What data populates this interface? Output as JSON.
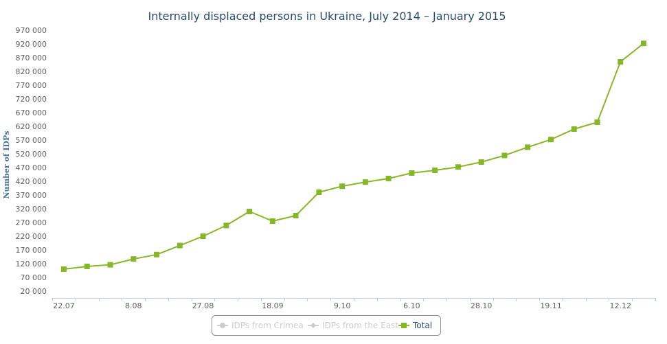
{
  "chart_data": {
    "type": "line",
    "title": "Internally displaced persons in Ukraine, July 2014 – January 2015",
    "xlabel": "",
    "ylabel": "Number of IDPs",
    "ylim": [
      20000,
      970000
    ],
    "y_ticks": [
      "20 000",
      "70 000",
      "120 000",
      "170 000",
      "220 000",
      "270 000",
      "320 000",
      "370 000",
      "420 000",
      "470 000",
      "520 000",
      "570 000",
      "620 000",
      "670 000",
      "720 000",
      "770 000",
      "820 000",
      "870 000",
      "920 000",
      "970 000"
    ],
    "x_tick_labels": [
      {
        "index": 0,
        "label": "22.07"
      },
      {
        "index": 3,
        "label": "8.08"
      },
      {
        "index": 6,
        "label": "27.08"
      },
      {
        "index": 9,
        "label": "18.09"
      },
      {
        "index": 12,
        "label": "9.10"
      },
      {
        "index": 15,
        "label": "6.10"
      },
      {
        "index": 18,
        "label": "28.10"
      },
      {
        "index": 21,
        "label": "19.11"
      },
      {
        "index": 24,
        "label": "12.12"
      }
    ],
    "grid": false,
    "legend_position": "bottom-center",
    "series": [
      {
        "name": "IDPs from Crimea",
        "visible": false,
        "color": "#cccccc",
        "values": []
      },
      {
        "name": "IDPs from the East",
        "visible": false,
        "color": "#cccccc",
        "values": []
      },
      {
        "name": "Total",
        "visible": true,
        "color": "#86b728",
        "values": [
          100000,
          110000,
          116000,
          137000,
          153000,
          186000,
          220000,
          259000,
          310000,
          275000,
          295000,
          380000,
          402000,
          417000,
          430000,
          450000,
          460000,
          472000,
          490000,
          514000,
          544000,
          572000,
          610000,
          635000,
          855000,
          922000
        ]
      }
    ]
  }
}
